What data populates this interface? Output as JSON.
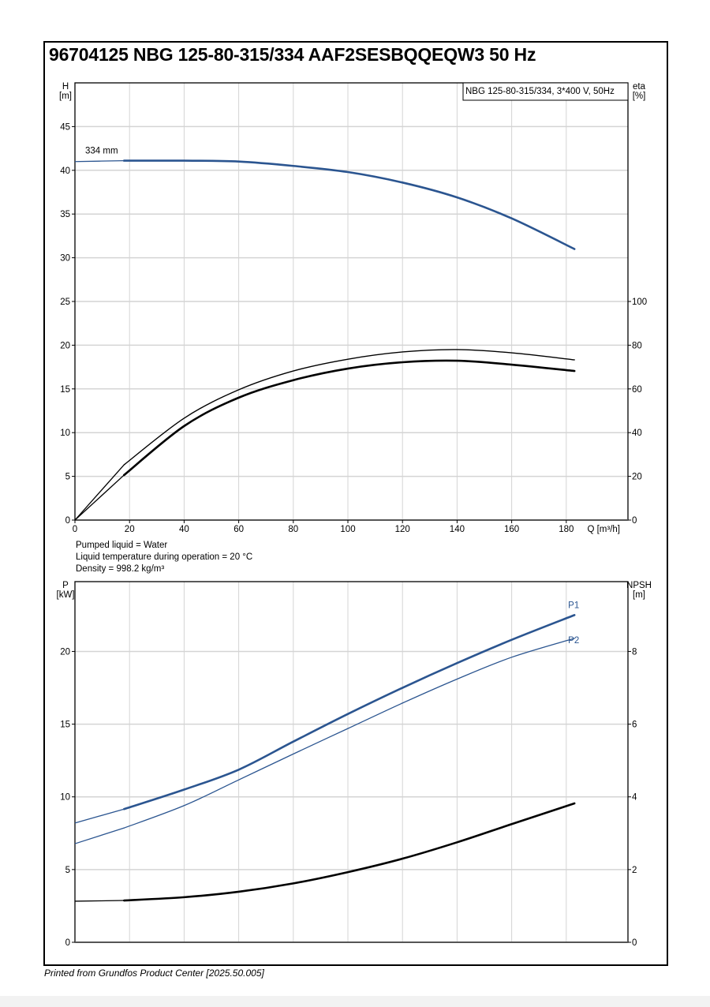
{
  "title": "96704125 NBG 125-80-315/334 AAF2SESBQQEQW3 50 Hz",
  "footer": "Printed from Grundfos Product Center [2025.50.005]",
  "notes": [
    "Pumped liquid = Water",
    "Liquid temperature during operation = 20 °C",
    "Density = 998.2 kg/m³"
  ],
  "colors": {
    "blue": "#2b5590",
    "black": "#000000",
    "grid": "#d4d4d4"
  },
  "chart_data": [
    {
      "type": "line",
      "legend_box": "NBG 125-80-315/334, 3*400 V, 50Hz",
      "legend_placement": "top-right",
      "grid": true,
      "xlabel": "Q [m³/h]",
      "xlim": [
        0,
        202.6
      ],
      "xticks": [
        "0",
        "20",
        "40",
        "60",
        "80",
        "100",
        "120",
        "140",
        "160",
        "180"
      ],
      "xtick_values": [
        0,
        20,
        40,
        60,
        80,
        100,
        120,
        140,
        160,
        180
      ],
      "y_left": {
        "label": [
          "H",
          "[m]"
        ],
        "lim": [
          0,
          50
        ],
        "ticks": [
          "0",
          "5",
          "10",
          "15",
          "20",
          "25",
          "30",
          "35",
          "40",
          "45"
        ],
        "tick_values": [
          0,
          5,
          10,
          15,
          20,
          25,
          30,
          35,
          40,
          45
        ]
      },
      "y_right": {
        "label": [
          "eta",
          "[%]"
        ],
        "lim": [
          0,
          200
        ],
        "ticks": [
          "0",
          "20",
          "40",
          "60",
          "80",
          "100"
        ],
        "tick_values": [
          0,
          20,
          40,
          60,
          80,
          100
        ]
      },
      "series": [
        {
          "axis": "left",
          "color": "#2b5590",
          "width": 2.6,
          "label": "334 mm",
          "x": [
            0,
            18,
            40,
            60,
            80,
            100,
            120,
            140,
            160,
            183
          ],
          "y": [
            41.0,
            41.1,
            41.1,
            41.0,
            40.5,
            39.8,
            38.6,
            36.9,
            34.5,
            31.0
          ]
        },
        {
          "axis": "right",
          "color": "#000000",
          "width": 1.4,
          "x": [
            0,
            18,
            40,
            60,
            80,
            100,
            120,
            140,
            160,
            183
          ],
          "y": [
            0,
            25.3,
            46.6,
            59.6,
            68.2,
            73.6,
            76.9,
            78.0,
            76.5,
            73.3
          ]
        },
        {
          "axis": "right",
          "color": "#000000",
          "width": 2.6,
          "x": [
            0,
            18,
            40,
            60,
            80,
            100,
            120,
            140,
            160,
            183
          ],
          "y": [
            0,
            20.6,
            43.0,
            56.0,
            64.0,
            69.3,
            72.2,
            72.9,
            71.1,
            68.2
          ]
        }
      ]
    },
    {
      "type": "line",
      "grid": true,
      "xlim": [
        0,
        202.6
      ],
      "xtick_values": [
        0,
        20,
        40,
        60,
        80,
        100,
        120,
        140,
        160,
        180
      ],
      "y_left": {
        "label": [
          "P",
          "[kW]"
        ],
        "lim": [
          0,
          24.8
        ],
        "ticks": [
          "0",
          "5",
          "10",
          "15",
          "20"
        ],
        "tick_values": [
          0,
          5,
          10,
          15,
          20
        ]
      },
      "y_right": {
        "label": [
          "NPSH",
          "[m]"
        ],
        "lim": [
          0,
          9.92
        ],
        "ticks": [
          "0",
          "2",
          "4",
          "6",
          "8"
        ],
        "tick_values": [
          0,
          2,
          4,
          6,
          8
        ]
      },
      "series": [
        {
          "name": "P1",
          "axis": "left",
          "color": "#2b5590",
          "width": 2.6,
          "x": [
            0,
            18,
            40,
            60,
            80,
            100,
            120,
            140,
            160,
            183
          ],
          "y": [
            8.2,
            9.16,
            10.5,
            11.87,
            13.8,
            15.7,
            17.5,
            19.2,
            20.8,
            22.5
          ]
        },
        {
          "name": "P2",
          "axis": "left",
          "color": "#2b5590",
          "width": 1.3,
          "x": [
            0,
            18,
            40,
            60,
            80,
            100,
            120,
            140,
            160,
            183
          ],
          "y": [
            6.78,
            7.86,
            9.4,
            11.17,
            12.95,
            14.7,
            16.45,
            18.1,
            19.6,
            20.9
          ]
        },
        {
          "axis": "right",
          "color": "#000000",
          "width": 2.6,
          "x": [
            0,
            18,
            40,
            60,
            80,
            100,
            120,
            140,
            160,
            183
          ],
          "y": [
            1.13,
            1.15,
            1.24,
            1.39,
            1.62,
            1.93,
            2.3,
            2.75,
            3.25,
            3.82
          ]
        }
      ]
    }
  ]
}
